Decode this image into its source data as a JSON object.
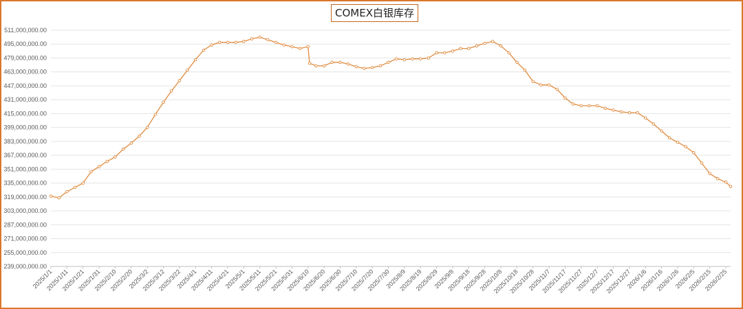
{
  "chart_data": {
    "type": "line",
    "title": "COMEX白银库存",
    "xlabel": "",
    "ylabel": "",
    "ylim": [
      239000000,
      511000000
    ],
    "y_ticks": [
      239000000,
      255000000,
      271000000,
      287000000,
      303000000,
      319000000,
      335000000,
      351000000,
      367000000,
      383000000,
      399000000,
      415000000,
      431000000,
      447000000,
      463000000,
      479000000,
      495000000,
      511000000
    ],
    "y_tick_labels": [
      "239,000,000.00",
      "255,000,000.00",
      "271,000,000.00",
      "287,000,000.00",
      "303,000,000.00",
      "319,000,000.00",
      "335,000,000.00",
      "351,000,000.00",
      "367,000,000.00",
      "383,000,000.00",
      "399,000,000.00",
      "415,000,000.00",
      "431,000,000.00",
      "447,000,000.00",
      "463,000,000.00",
      "479,000,000.00",
      "495,000,000.00",
      "511,000,000.00"
    ],
    "x_tick_labels": [
      "2025/1/1",
      "2025/1/11",
      "2025/1/21",
      "2025/1/31",
      "2025/2/10",
      "2025/2/20",
      "2025/3/2",
      "2025/3/12",
      "2025/3/22",
      "2025/4/1",
      "2025/4/11",
      "2025/4/21",
      "2025/5/1",
      "2025/5/11",
      "2025/5/21",
      "2025/5/31",
      "2025/6/10",
      "2025/6/20",
      "2025/6/30",
      "2025/7/10",
      "2025/7/20",
      "2025/7/30",
      "2025/8/9",
      "2025/8/19",
      "2025/8/29",
      "2025/9/8",
      "2025/9/18",
      "2025/9/28",
      "2025/10/8",
      "2025/10/18",
      "2025/10/28",
      "2025/11/7",
      "2025/11/17",
      "2025/11/27",
      "2025/12/7",
      "2025/12/17",
      "2025/12/27",
      "2026/1/6",
      "2026/1/16",
      "2026/1/26",
      "2026/2/5",
      "2026/2/15",
      "2026/2/25"
    ],
    "grid": true,
    "legend": "none",
    "line_color": "#e08a3c",
    "series": [
      {
        "x": [
          "2025/1/1",
          "2025/1/6",
          "2025/1/11",
          "2025/1/16",
          "2025/1/21",
          "2025/1/26",
          "2025/1/31",
          "2025/2/5",
          "2025/2/10",
          "2025/2/15",
          "2025/2/20",
          "2025/2/25",
          "2025/3/2",
          "2025/3/7",
          "2025/3/12",
          "2025/3/17",
          "2025/3/22",
          "2025/3/27",
          "2025/4/1",
          "2025/4/6",
          "2025/4/11",
          "2025/4/16",
          "2025/4/21",
          "2025/4/26",
          "2025/5/1",
          "2025/5/6",
          "2025/5/11",
          "2025/5/16",
          "2025/5/21",
          "2025/5/26",
          "2025/5/31",
          "2025/6/5",
          "2025/6/10",
          "2025/6/11",
          "2025/6/15",
          "2025/6/20",
          "2025/6/25",
          "2025/6/30",
          "2025/7/5",
          "2025/7/10",
          "2025/7/15",
          "2025/7/20",
          "2025/7/25",
          "2025/7/30",
          "2025/8/4",
          "2025/8/9",
          "2025/8/14",
          "2025/8/19",
          "2025/8/24",
          "2025/8/29",
          "2025/9/3",
          "2025/9/8",
          "2025/9/13",
          "2025/9/18",
          "2025/9/23",
          "2025/9/28",
          "2025/10/3",
          "2025/10/8",
          "2025/10/13",
          "2025/10/18",
          "2025/10/23",
          "2025/10/28",
          "2025/11/2",
          "2025/11/7",
          "2025/11/12",
          "2025/11/17",
          "2025/11/22",
          "2025/11/27",
          "2025/12/2",
          "2025/12/7",
          "2025/12/12",
          "2025/12/17",
          "2025/12/22",
          "2025/12/27",
          "2026/1/1",
          "2026/1/6",
          "2026/1/11",
          "2026/1/16",
          "2026/1/21",
          "2026/1/26",
          "2026/1/31",
          "2026/2/5",
          "2026/2/10",
          "2026/2/15",
          "2026/2/20",
          "2026/2/25",
          "2026/2/28"
        ],
        "values": [
          320000000,
          318000000,
          325000000,
          330000000,
          335000000,
          348000000,
          354000000,
          360000000,
          365000000,
          374000000,
          381000000,
          389000000,
          399000000,
          414000000,
          428000000,
          441000000,
          453000000,
          465000000,
          477000000,
          488000000,
          494000000,
          497000000,
          497000000,
          497000000,
          498000000,
          501000000,
          503000000,
          500000000,
          497000000,
          494000000,
          492000000,
          490000000,
          492000000,
          473000000,
          470000000,
          470000000,
          474000000,
          474000000,
          472000000,
          469000000,
          467000000,
          468000000,
          470000000,
          474000000,
          478000000,
          477000000,
          478000000,
          478000000,
          479000000,
          485000000,
          485000000,
          487000000,
          490000000,
          490000000,
          493000000,
          496000000,
          498000000,
          493000000,
          485000000,
          474000000,
          465000000,
          452000000,
          448000000,
          448000000,
          443000000,
          433000000,
          426000000,
          424000000,
          424000000,
          424000000,
          421000000,
          419000000,
          417000000,
          416000000,
          416000000,
          410000000,
          403000000,
          395000000,
          387000000,
          382000000,
          377000000,
          370000000,
          358000000,
          346000000,
          340000000,
          336000000,
          331000000
        ]
      }
    ]
  }
}
